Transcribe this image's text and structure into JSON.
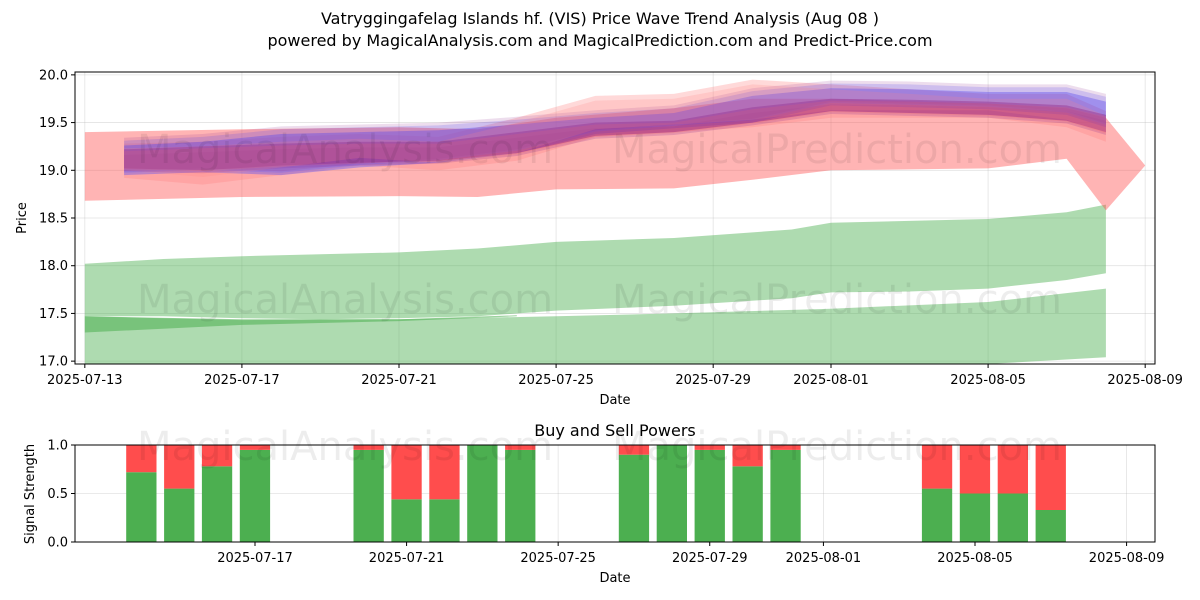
{
  "title_line1": "Vatryggingafelag Islands hf. (VIS) Price Wave Trend Analysis (Aug 08 )",
  "title_line2": "powered by MagicalAnalysis.com and MagicalPrediction.com and Predict-Price.com",
  "watermarks": [
    "MagicalAnalysis.com",
    "MagicalPrediction.com"
  ],
  "chart_data": [
    {
      "type": "area",
      "name": "price-wave",
      "xlabel": "Date",
      "ylabel": "Price",
      "xlim": [
        "2025-07-13",
        "2025-08-09"
      ],
      "ylim": [
        16.97,
        20.03
      ],
      "x_ticks": [
        "2025-07-13",
        "2025-07-17",
        "2025-07-21",
        "2025-07-25",
        "2025-07-29",
        "2025-08-01",
        "2025-08-05",
        "2025-08-09"
      ],
      "y_ticks": [
        "17.0",
        "17.5",
        "18.0",
        "18.5",
        "19.0",
        "19.5",
        "20.0"
      ],
      "grid": true,
      "series": [
        {
          "name": "green-upper-band",
          "color": "#4caf50",
          "x": [
            "2025-07-13",
            "2025-07-15",
            "2025-07-17",
            "2025-07-19",
            "2025-07-21",
            "2025-07-23",
            "2025-07-25",
            "2025-07-28",
            "2025-07-31",
            "2025-08-01",
            "2025-08-03",
            "2025-08-05",
            "2025-08-07",
            "2025-08-08"
          ],
          "upper": [
            18.02,
            18.07,
            18.1,
            18.12,
            18.14,
            18.18,
            18.25,
            18.29,
            18.38,
            18.45,
            18.47,
            18.49,
            18.56,
            18.64
          ],
          "lower": [
            17.47,
            17.47,
            17.45,
            17.44,
            17.45,
            17.47,
            17.53,
            17.58,
            17.66,
            17.72,
            17.73,
            17.76,
            17.85,
            17.92
          ]
        },
        {
          "name": "green-lower-band",
          "color": "#4caf50",
          "x": [
            "2025-07-13",
            "2025-07-17",
            "2025-07-21",
            "2025-07-25",
            "2025-07-28",
            "2025-08-01",
            "2025-08-05",
            "2025-08-08"
          ],
          "upper": [
            17.47,
            17.43,
            17.44,
            17.47,
            17.5,
            17.55,
            17.62,
            17.76
          ],
          "lower": [
            16.97,
            16.97,
            16.97,
            16.97,
            16.97,
            16.97,
            16.97,
            17.04
          ]
        },
        {
          "name": "green-dark-strip",
          "color": "#4caf50",
          "x": [
            "2025-07-13",
            "2025-07-17",
            "2025-07-21",
            "2025-07-24"
          ],
          "upper": [
            17.47,
            17.44,
            17.44,
            17.48
          ],
          "lower": [
            17.3,
            17.38,
            17.42,
            17.47
          ]
        },
        {
          "name": "red-wide-band",
          "color": "#ff4d4d",
          "x": [
            "2025-07-13",
            "2025-07-17",
            "2025-07-21",
            "2025-07-23",
            "2025-07-25",
            "2025-07-28",
            "2025-07-30",
            "2025-08-01",
            "2025-08-05",
            "2025-08-07",
            "2025-08-08",
            "2025-08-09"
          ],
          "upper": [
            19.4,
            19.43,
            19.45,
            19.43,
            19.55,
            19.65,
            19.75,
            19.75,
            19.7,
            19.65,
            19.55,
            19.05
          ],
          "lower": [
            18.68,
            18.72,
            18.73,
            18.72,
            18.8,
            18.81,
            18.9,
            19.0,
            19.02,
            19.12,
            18.58,
            19.05
          ]
        },
        {
          "name": "blue-wave",
          "color": "#4d4dff",
          "x": [
            "2025-07-14",
            "2025-07-16",
            "2025-07-18",
            "2025-07-20",
            "2025-07-22",
            "2025-07-24",
            "2025-07-26",
            "2025-07-28",
            "2025-07-30",
            "2025-08-01",
            "2025-08-03",
            "2025-08-05",
            "2025-08-07",
            "2025-08-08"
          ],
          "upper": [
            19.26,
            19.3,
            19.38,
            19.4,
            19.42,
            19.48,
            19.55,
            19.6,
            19.78,
            19.86,
            19.85,
            19.82,
            19.82,
            19.72
          ],
          "lower": [
            18.95,
            18.98,
            18.95,
            19.03,
            19.08,
            19.18,
            19.38,
            19.44,
            19.5,
            19.68,
            19.66,
            19.64,
            19.58,
            19.45
          ]
        },
        {
          "name": "purple-wave",
          "color": "#8e2a8e",
          "x": [
            "2025-07-14",
            "2025-07-16",
            "2025-07-18",
            "2025-07-20",
            "2025-07-22",
            "2025-07-24",
            "2025-07-26",
            "2025-07-28",
            "2025-07-30",
            "2025-08-01",
            "2025-08-03",
            "2025-08-05",
            "2025-08-07",
            "2025-08-08"
          ],
          "upper": [
            19.22,
            19.25,
            19.28,
            19.3,
            19.3,
            19.4,
            19.5,
            19.52,
            19.66,
            19.75,
            19.74,
            19.72,
            19.68,
            19.58
          ],
          "lower": [
            19.02,
            19.0,
            19.05,
            19.08,
            19.1,
            19.18,
            19.36,
            19.4,
            19.5,
            19.62,
            19.6,
            19.58,
            19.52,
            19.4
          ]
        },
        {
          "name": "pink-wave",
          "color": "#ff8080",
          "x": [
            "2025-07-14",
            "2025-07-16",
            "2025-07-18",
            "2025-07-20",
            "2025-07-22",
            "2025-07-24",
            "2025-07-26",
            "2025-07-28",
            "2025-07-30",
            "2025-08-01",
            "2025-08-03",
            "2025-08-05",
            "2025-08-07",
            "2025-08-08"
          ],
          "upper": [
            19.28,
            19.3,
            19.35,
            19.38,
            19.35,
            19.55,
            19.78,
            19.8,
            19.95,
            19.9,
            19.85,
            19.8,
            19.8,
            19.62
          ],
          "lower": [
            18.92,
            18.85,
            18.95,
            19.05,
            19.0,
            19.1,
            19.35,
            19.4,
            19.45,
            19.55,
            19.55,
            19.55,
            19.45,
            19.3
          ]
        }
      ]
    },
    {
      "type": "bar",
      "name": "buy-and-sell-powers",
      "title": "Buy and Sell Powers",
      "xlabel": "Date",
      "ylabel": "Signal Strength",
      "ylim": [
        0,
        1
      ],
      "y_ticks": [
        "0.0",
        "0.5",
        "1.0"
      ],
      "x_ticks": [
        "2025-07-17",
        "2025-07-21",
        "2025-07-25",
        "2025-07-29",
        "2025-08-01",
        "2025-08-05",
        "2025-08-09"
      ],
      "series": [
        {
          "name": "Buy",
          "color": "#4caf50"
        },
        {
          "name": "Sell",
          "color": "#ff4d4d"
        }
      ],
      "bars": [
        {
          "date": "2025-07-14",
          "buy": 0.72
        },
        {
          "date": "2025-07-15",
          "buy": 0.55
        },
        {
          "date": "2025-07-16",
          "buy": 0.78
        },
        {
          "date": "2025-07-17",
          "buy": 0.95
        },
        {
          "date": "2025-07-20",
          "buy": 0.95
        },
        {
          "date": "2025-07-21",
          "buy": 0.44
        },
        {
          "date": "2025-07-22",
          "buy": 0.44
        },
        {
          "date": "2025-07-23",
          "buy": 1.0
        },
        {
          "date": "2025-07-24",
          "buy": 0.95
        },
        {
          "date": "2025-07-27",
          "buy": 0.9
        },
        {
          "date": "2025-07-28",
          "buy": 1.0
        },
        {
          "date": "2025-07-29",
          "buy": 0.95
        },
        {
          "date": "2025-07-30",
          "buy": 0.78
        },
        {
          "date": "2025-07-31",
          "buy": 0.95
        },
        {
          "date": "2025-08-04",
          "buy": 0.55
        },
        {
          "date": "2025-08-05",
          "buy": 0.5
        },
        {
          "date": "2025-08-06",
          "buy": 0.5
        },
        {
          "date": "2025-08-07",
          "buy": 0.33
        }
      ]
    }
  ]
}
